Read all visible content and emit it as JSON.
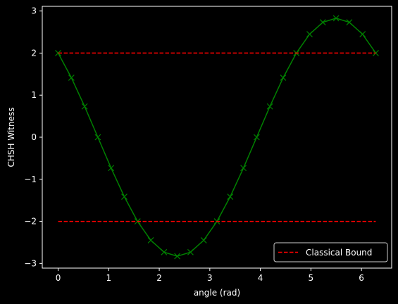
{
  "chart_data": {
    "type": "line",
    "xlabel": "angle (rad)",
    "ylabel": "CHSH Witness",
    "xlim": [
      -0.3141592653589793,
      6.5973445725385655
    ],
    "ylim": [
      -3.111269837220809,
      3.111269837220809
    ],
    "xticks": [
      0,
      1,
      2,
      3,
      4,
      5,
      6
    ],
    "xtick_labels": [
      "0",
      "1",
      "2",
      "3",
      "4",
      "5",
      "6"
    ],
    "yticks": [
      -3,
      -2,
      -1,
      0,
      1,
      2,
      3
    ],
    "ytick_labels": [
      "−3",
      "−2",
      "−1",
      "0",
      "1",
      "2",
      "3"
    ],
    "grid": false,
    "legend_placement": "lower-right",
    "series": [
      {
        "role": "witness",
        "color": "#008000",
        "line_style": "solid",
        "marker": "x",
        "x": [
          0,
          0.2618,
          0.5236,
          0.7854,
          1.0472,
          1.309,
          1.5708,
          1.8326,
          2.0944,
          2.3562,
          2.618,
          2.8798,
          3.1416,
          3.4034,
          3.6652,
          3.927,
          4.1888,
          4.4506,
          4.7124,
          4.9742,
          5.236,
          5.4978,
          5.7596,
          6.0214,
          6.2832
        ],
        "y": [
          2.0,
          1.414,
          0.732,
          0.0,
          -0.732,
          -1.414,
          -2.0,
          -2.449,
          -2.732,
          -2.828,
          -2.732,
          -2.449,
          -2.0,
          -1.414,
          -0.732,
          0.0,
          0.732,
          1.414,
          2.0,
          2.449,
          2.732,
          2.828,
          2.732,
          2.449,
          2.0
        ]
      },
      {
        "name": "Classical Bound",
        "color": "#ff0000",
        "line_style": "dashed",
        "x": [
          0,
          6.2832
        ],
        "y": [
          2,
          2
        ]
      },
      {
        "name": "",
        "color": "#ff0000",
        "line_style": "dashed",
        "x": [
          0,
          6.2832
        ],
        "y": [
          -2,
          -2
        ]
      }
    ],
    "legend": [
      {
        "label": "Classical Bound",
        "color": "#ff0000",
        "line_style": "dashed"
      }
    ]
  }
}
